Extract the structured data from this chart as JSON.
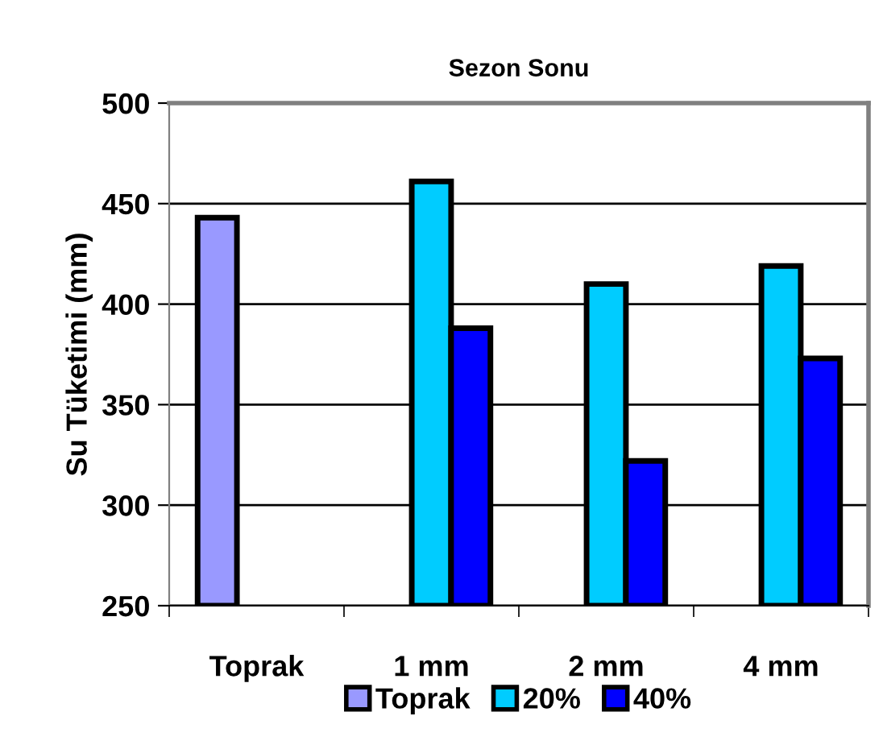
{
  "chart_data": {
    "type": "bar",
    "title": "Sezon Sonu",
    "ylabel": "Su Tüketimi (mm)",
    "categories": [
      "Toprak",
      "1 mm",
      "2 mm",
      "4 mm"
    ],
    "series": [
      {
        "name": "Toprak",
        "color": "#9999ff",
        "values": [
          443,
          null,
          null,
          null
        ]
      },
      {
        "name": "20%",
        "color": "#00ccff",
        "values": [
          null,
          461,
          410,
          419
        ]
      },
      {
        "name": "40%",
        "color": "#0000ff",
        "values": [
          null,
          388,
          322,
          373
        ]
      }
    ],
    "ylim": [
      250,
      500
    ],
    "yticks": [
      250,
      300,
      350,
      400,
      450,
      500
    ],
    "grid": "y",
    "legend": "bottom"
  }
}
